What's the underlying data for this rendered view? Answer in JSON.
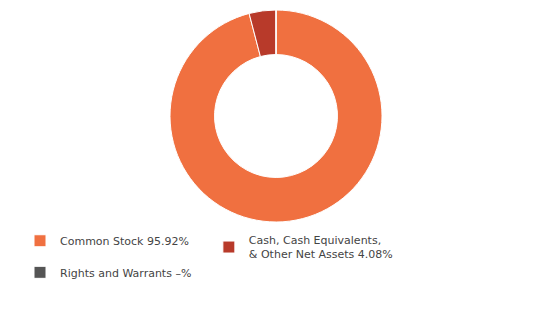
{
  "chart_data": {
    "type": "pie",
    "categories": [
      "Common Stock 95.92%",
      "Cash, Cash Equivalents,\n& Other Net Assets 4.08%",
      "Rights and Warrants –%"
    ],
    "values": [
      95.92,
      4.08,
      0.001
    ],
    "colors": [
      "#f07040",
      "#b83a2a",
      "#555555"
    ],
    "legend": "bottom"
  }
}
